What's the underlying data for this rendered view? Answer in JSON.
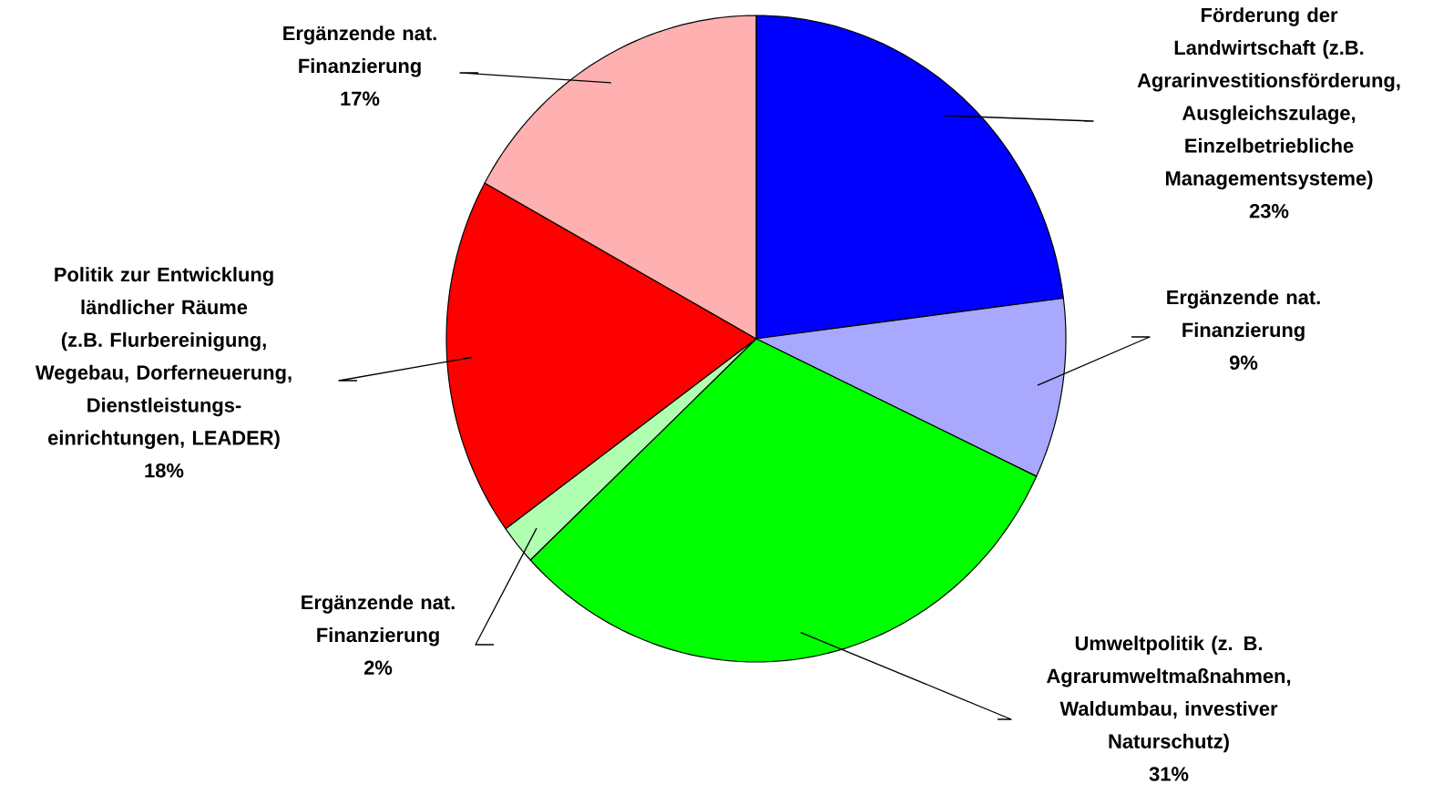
{
  "chart_data": {
    "type": "pie",
    "categories": [
      "Förderung der Landwirtschaft (z.B. Agrarinvestitionsförderung, Ausgleichszulage, Einzelbetriebliche Managementsysteme)",
      "Ergänzende nat. Finanzierung",
      "Umweltpolitik (z. B. Agrarumweltmaßnahmen, Waldumbau, investiver Naturschutz)",
      "Ergänzende nat. Finanzierung",
      "Politik zur Entwicklung ländlicher Räume (z.B. Flurbereinigung, Wegebau, Dorferneuerung, Dienstleistungs-einrichtungen, LEADER)",
      "Ergänzende nat. Finanzierung"
    ],
    "values": [
      23,
      9,
      31,
      2,
      18,
      17
    ],
    "value_labels": [
      "23%",
      "9%",
      "31%",
      "2%",
      "18%",
      "17%"
    ],
    "colors": [
      "#0000ff",
      "#a8a8ff",
      "#00ff00",
      "#b0ffb0",
      "#ff0000",
      "#ffb0b0"
    ]
  }
}
